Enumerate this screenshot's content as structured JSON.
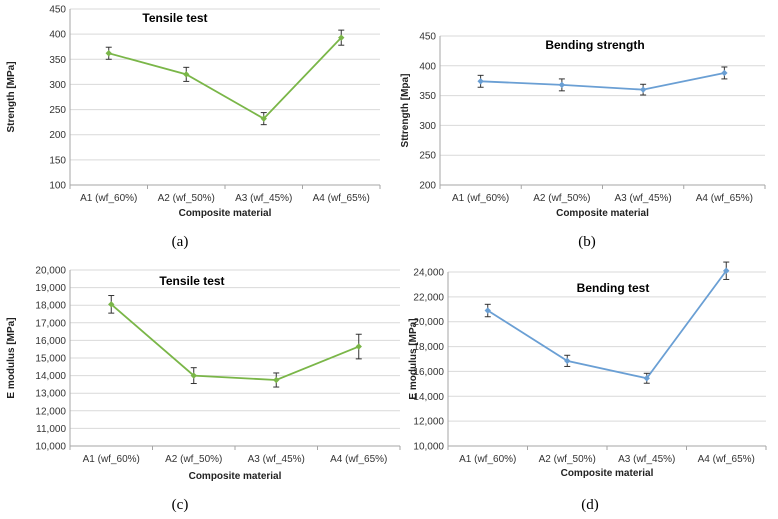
{
  "colors": {
    "green": "#7ab648",
    "blue": "#6a9fd4",
    "grid": "#d9d9d9",
    "axis": "#a6a6a6"
  },
  "chart_data": [
    {
      "type": "line",
      "title": "Tensile test",
      "xlabel": "Composite material",
      "ylabel": "Strength [MPa]",
      "categories": [
        "A1 (wf_60%)",
        "A2 (wf_50%)",
        "A3 (wf_45%)",
        "A4 (wf_65%)"
      ],
      "values": [
        362,
        320,
        232,
        393
      ],
      "errors": [
        12,
        14,
        12,
        15
      ],
      "ylim": [
        100,
        450
      ],
      "yticks": [
        "100",
        "150",
        "200",
        "250",
        "300",
        "350",
        "400",
        "450"
      ],
      "grid": true,
      "color": "#7ab648",
      "caption": "(a)"
    },
    {
      "type": "line",
      "title": "Bending strength",
      "xlabel": "Composite material",
      "ylabel": "Sttrength [Mpa]",
      "categories": [
        "A1 (wf_60%)",
        "A2 (wf_50%)",
        "A3 (wf_45%)",
        "A4 (wf_65%)"
      ],
      "values": [
        374,
        368,
        360,
        388
      ],
      "errors": [
        10,
        10,
        9,
        10
      ],
      "ylim": [
        200,
        450
      ],
      "yticks": [
        "200",
        "250",
        "300",
        "350",
        "400",
        "450"
      ],
      "grid": true,
      "color": "#6a9fd4",
      "caption": "(b)"
    },
    {
      "type": "line",
      "title": "Tensile test",
      "xlabel": "Composite material",
      "ylabel": "E modulus [MPa]",
      "categories": [
        "A1 (wf_60%)",
        "A2 (wf_50%)",
        "A3 (wf_45%)",
        "A4 (wf_65%)"
      ],
      "values": [
        18050,
        14000,
        13750,
        15650
      ],
      "errors": [
        500,
        450,
        400,
        700
      ],
      "ylim": [
        10000,
        20000
      ],
      "yticks": [
        "10,000",
        "11,000",
        "12,000",
        "13,000",
        "14,000",
        "15,000",
        "16,000",
        "17,000",
        "18,000",
        "19,000",
        "20,000"
      ],
      "grid": true,
      "color": "#7ab648",
      "caption": "(c)"
    },
    {
      "type": "line",
      "title": "Bending test",
      "xlabel": "Composite material",
      "ylabel": "E modulus [MPa]",
      "categories": [
        "A1 (wf_60%)",
        "A2 (wf_50%)",
        "A3 (wf_45%)",
        "A4 (wf_65%)"
      ],
      "values": [
        20900,
        16850,
        15450,
        24100
      ],
      "errors": [
        500,
        450,
        400,
        700
      ],
      "ylim": [
        10000,
        24000
      ],
      "yticks": [
        "10,000",
        "12,000",
        "14,000",
        "16,000",
        "18,000",
        "20,000",
        "22,000",
        "24,000"
      ],
      "grid": true,
      "color": "#6a9fd4",
      "caption": "(d)"
    }
  ]
}
